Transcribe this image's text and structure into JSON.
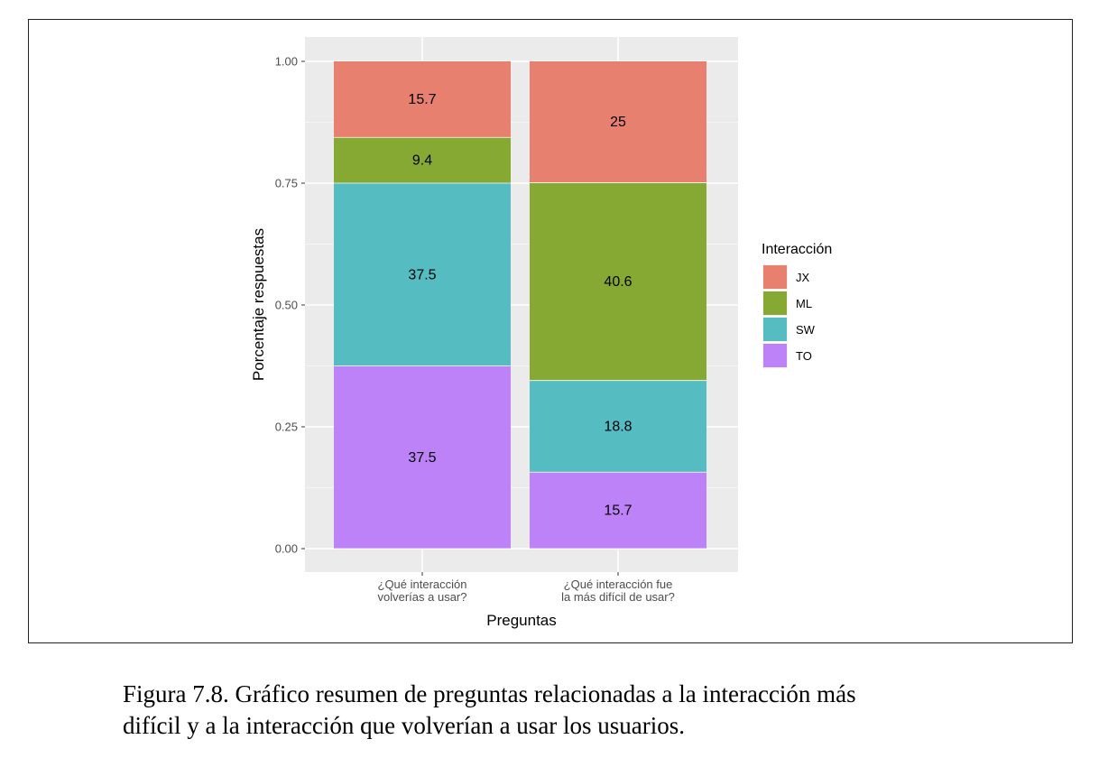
{
  "caption": {
    "line1": "Figura 7.8.  Gráfico resumen de preguntas relacionadas a la interacción más",
    "line2": "difícil y a la interacción que volverían a usar los usuarios."
  },
  "chart_data": {
    "type": "bar",
    "stacked": true,
    "xlabel": "Preguntas",
    "ylabel": "Porcentaje respuestas",
    "ylim": [
      0,
      1
    ],
    "y_ticks": [
      "0.00",
      "0.25",
      "0.50",
      "0.75",
      "1.00"
    ],
    "y_tick_values": [
      0,
      0.25,
      0.5,
      0.75,
      1.0
    ],
    "grid": true,
    "legend_title": "Interacción",
    "legend_position": "right",
    "categories": [
      [
        "¿Qué interacción",
        "volverías a usar?"
      ],
      [
        "¿Qué interacción fue",
        "la más difícil de usar?"
      ]
    ],
    "series": [
      {
        "name": "JX",
        "color": "#E8806F",
        "values": [
          0.157,
          0.25
        ],
        "labels": [
          "15.7",
          "25"
        ]
      },
      {
        "name": "ML",
        "color": "#86A934",
        "values": [
          0.094,
          0.406
        ],
        "labels": [
          "9.4",
          "40.6"
        ]
      },
      {
        "name": "SW",
        "color": "#55BCC2",
        "values": [
          0.375,
          0.188
        ],
        "labels": [
          "37.5",
          "18.8"
        ]
      },
      {
        "name": "TO",
        "color": "#BE82F8",
        "values": [
          0.375,
          0.157
        ],
        "labels": [
          "37.5",
          "15.7"
        ]
      }
    ]
  }
}
